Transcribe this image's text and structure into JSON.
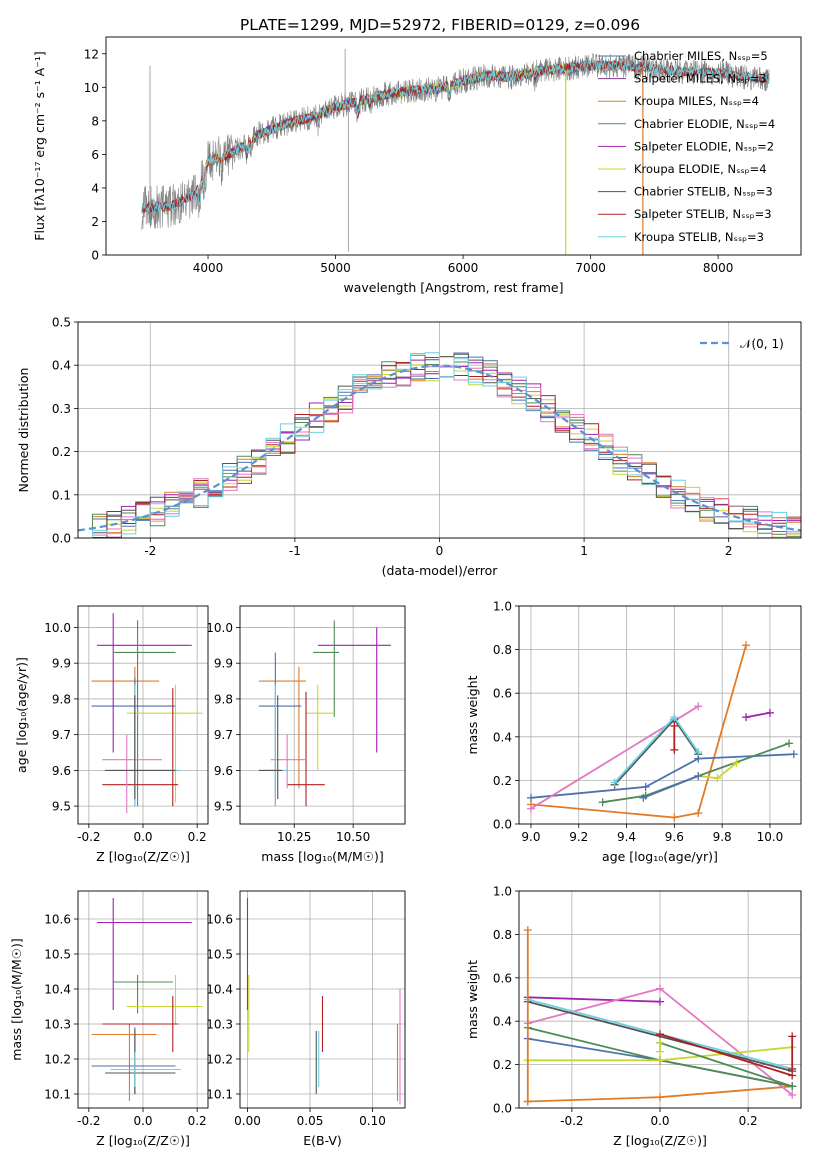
{
  "figure": {
    "title": "PLATE=1299, MJD=52972, FIBERID=0129, z=0.096"
  },
  "chart_data": [
    {
      "id": "spectrum",
      "type": "line",
      "xlabel": "wavelength [Angstrom, rest frame]",
      "ylabel": "Flux [fλ10⁻¹⁷ erg cm⁻² s⁻¹ A⁻¹]",
      "xlim": [
        3200,
        8650
      ],
      "ylim": [
        0,
        13
      ],
      "xticks": [
        4000,
        5000,
        6000,
        7000,
        8000
      ],
      "yticks": [
        0,
        2,
        4,
        6,
        8,
        10,
        12
      ],
      "grid": false,
      "legend_position": "right",
      "data_range": [
        3480,
        8400
      ],
      "continuum": [
        [
          3480,
          2.8
        ],
        [
          3700,
          2.9
        ],
        [
          3900,
          3.6
        ],
        [
          4000,
          5.6
        ],
        [
          4200,
          6.1
        ],
        [
          4400,
          7.2
        ],
        [
          4600,
          7.8
        ],
        [
          4800,
          8.2
        ],
        [
          5000,
          8.8
        ],
        [
          5200,
          9.2
        ],
        [
          5400,
          9.6
        ],
        [
          5600,
          9.8
        ],
        [
          5800,
          9.9
        ],
        [
          6000,
          10.4
        ],
        [
          6200,
          10.7
        ],
        [
          6400,
          10.6
        ],
        [
          6600,
          11.0
        ],
        [
          6800,
          11.1
        ],
        [
          7000,
          11.3
        ],
        [
          7200,
          11.3
        ],
        [
          7400,
          11.2
        ],
        [
          7600,
          11.0
        ],
        [
          7800,
          10.9
        ],
        [
          8000,
          10.9
        ],
        [
          8200,
          10.6
        ],
        [
          8400,
          10.5
        ]
      ],
      "series": [
        {
          "name": "Chabrier MILES, Nₛₛₚ=5",
          "color": "#4c72b0",
          "lo": 3540,
          "hi": 7410
        },
        {
          "name": "Salpeter MILES, Nₛₛₚ=3",
          "color": "#7f3a8a",
          "lo": 3540,
          "hi": 7410
        },
        {
          "name": "Kroupa MILES, Nₛₛₚ=4",
          "color": "#e07b28",
          "lo": 3540,
          "hi": 7410
        },
        {
          "name": "Chabrier ELODIE, Nₛₛₚ=4",
          "color": "#4e8a56",
          "lo": 3900,
          "hi": 6800
        },
        {
          "name": "Salpeter ELODIE, Nₛₛₚ=2",
          "color": "#a020b0",
          "lo": 3900,
          "hi": 6800
        },
        {
          "name": "Kroupa ELODIE, Nₛₛₚ=4",
          "color": "#c8d630",
          "lo": 3900,
          "hi": 6800
        },
        {
          "name": "Chabrier STELIB, Nₛₛₚ=3",
          "color": "#555555",
          "lo": 3480,
          "hi": 8400
        },
        {
          "name": "Salpeter STELIB, Nₛₛₚ=3",
          "color": "#b02020",
          "lo": 3480,
          "hi": 8400
        },
        {
          "name": "Kroupa STELIB, Nₛₛₚ=3",
          "color": "#6dd0e0",
          "lo": 3480,
          "hi": 8400
        }
      ],
      "observed": {
        "color": "#808080"
      }
    },
    {
      "id": "residuals",
      "type": "bar",
      "xlabel": "(data-model)/error",
      "ylabel": "Normed distribution",
      "xlim": [
        -2.5,
        2.5
      ],
      "ylim": [
        0,
        0.5
      ],
      "xticks": [
        -2,
        -1,
        0,
        1,
        2
      ],
      "yticks": [
        0.0,
        0.1,
        0.2,
        0.3,
        0.4,
        0.5
      ],
      "grid": true,
      "legend": "𝒩(0, 1)",
      "legend_position": "top-right",
      "reference_curve": "N(0,1)",
      "colors": [
        "#4c72b0",
        "#e07b28",
        "#4e8a56",
        "#a020b0",
        "#c8d630",
        "#b02020",
        "#e377c2",
        "#555555",
        "#6dd0e0"
      ]
    },
    {
      "id": "age-vs-Z",
      "type": "scatter",
      "xlabel": "Z [log₁₀(Z/Z☉)]",
      "ylabel": "age  [log₁₀(age/yr)]",
      "xlim": [
        -0.24,
        0.24
      ],
      "ylim": [
        9.45,
        10.06
      ],
      "xticks": [
        -0.2,
        0.0,
        0.2
      ],
      "yticks": [
        9.5,
        9.6,
        9.7,
        9.8,
        9.9,
        10.0
      ],
      "grid": true,
      "points": [
        {
          "color": "#e07b28",
          "x": -0.03,
          "xlo": -0.19,
          "xhi": 0.06,
          "y": 9.85,
          "ylo": 9.55,
          "yhi": 9.89
        },
        {
          "color": "#4c72b0",
          "x": -0.03,
          "xlo": -0.19,
          "xhi": 0.12,
          "y": 9.78,
          "ylo": 9.5,
          "yhi": 9.86
        },
        {
          "color": "#a020b0",
          "x": -0.11,
          "xlo": -0.17,
          "xhi": 0.18,
          "y": 9.95,
          "ylo": 9.65,
          "yhi": 10.04
        },
        {
          "color": "#4e8a56",
          "x": -0.02,
          "xlo": -0.11,
          "xhi": 0.12,
          "y": 9.93,
          "ylo": 9.5,
          "yhi": 10.02
        },
        {
          "color": "#c8d630",
          "x": 0.12,
          "xlo": -0.06,
          "xhi": 0.22,
          "y": 9.76,
          "ylo": 9.51,
          "yhi": 9.84
        },
        {
          "color": "#b02020",
          "x": 0.11,
          "xlo": -0.15,
          "xhi": 0.13,
          "y": 9.56,
          "ylo": 9.5,
          "yhi": 9.83
        },
        {
          "color": "#e377c2",
          "x": -0.06,
          "xlo": -0.15,
          "xhi": 0.07,
          "y": 9.63,
          "ylo": 9.48,
          "yhi": 9.7
        },
        {
          "color": "#6dd0e0",
          "x": -0.03,
          "xlo": -0.12,
          "xhi": 0.14,
          "y": 9.6,
          "ylo": 9.5,
          "yhi": 9.84
        },
        {
          "color": "#555555",
          "x": -0.03,
          "xlo": -0.14,
          "xhi": 0.12,
          "y": 9.6,
          "ylo": 9.52,
          "yhi": 9.81
        }
      ]
    },
    {
      "id": "age-vs-mass",
      "type": "scatter",
      "xlabel": "mass [log₁₀(M/M☉)]",
      "ylabel": "",
      "xlim": [
        10.02,
        10.72
      ],
      "ylim": [
        9.45,
        10.06
      ],
      "xticks": [
        10.25,
        10.5
      ],
      "yticks": [
        9.5,
        9.6,
        9.7,
        9.8,
        9.9,
        10.0
      ],
      "grid": true,
      "points": [
        {
          "color": "#e07b28",
          "x": 10.27,
          "xlo": 10.1,
          "xhi": 10.3,
          "y": 9.85,
          "ylo": 9.55,
          "yhi": 9.89
        },
        {
          "color": "#4c72b0",
          "x": 10.17,
          "xlo": 10.1,
          "xhi": 10.28,
          "y": 9.78,
          "ylo": 9.5,
          "yhi": 9.93
        },
        {
          "color": "#a020b0",
          "x": 10.6,
          "xlo": 10.35,
          "xhi": 10.66,
          "y": 9.95,
          "ylo": 9.65,
          "yhi": 10.0
        },
        {
          "color": "#4e8a56",
          "x": 10.42,
          "xlo": 10.33,
          "xhi": 10.44,
          "y": 9.93,
          "ylo": 9.75,
          "yhi": 10.02
        },
        {
          "color": "#c8d630",
          "x": 10.35,
          "xlo": 10.3,
          "xhi": 10.42,
          "y": 9.76,
          "ylo": 9.6,
          "yhi": 9.84
        },
        {
          "color": "#b02020",
          "x": 10.3,
          "xlo": 10.22,
          "xhi": 10.38,
          "y": 9.56,
          "ylo": 9.5,
          "yhi": 9.82
        },
        {
          "color": "#e377c2",
          "x": 10.22,
          "xlo": 10.15,
          "xhi": 10.3,
          "y": 9.63,
          "ylo": 9.55,
          "yhi": 9.7
        },
        {
          "color": "#6dd0e0",
          "x": 10.17,
          "xlo": 10.12,
          "xhi": 10.22,
          "y": 9.6,
          "ylo": 9.5,
          "yhi": 9.84
        },
        {
          "color": "#555555",
          "x": 10.18,
          "xlo": 10.1,
          "xhi": 10.2,
          "y": 9.6,
          "ylo": 9.52,
          "yhi": 9.81
        }
      ]
    },
    {
      "id": "weight-vs-age",
      "type": "line",
      "xlabel": "age  [log₁₀(age/yr)]",
      "ylabel": "mass weight",
      "xlim": [
        8.95,
        10.13
      ],
      "ylim": [
        0,
        1
      ],
      "xticks": [
        9.0,
        9.2,
        9.4,
        9.6,
        9.8,
        10.0
      ],
      "yticks": [
        0.0,
        0.2,
        0.4,
        0.6,
        0.8,
        1.0
      ],
      "grid": true,
      "series": [
        {
          "color": "#e07b28",
          "x": [
            9.0,
            9.6,
            9.7,
            9.9
          ],
          "y": [
            0.09,
            0.03,
            0.05,
            0.82
          ]
        },
        {
          "color": "#4c72b0",
          "x": [
            9.0,
            9.48,
            9.7,
            10.1
          ],
          "y": [
            0.12,
            0.17,
            0.3,
            0.32
          ]
        },
        {
          "color": "#e377c2",
          "x": [
            9.0,
            9.7
          ],
          "y": [
            0.07,
            0.54
          ]
        },
        {
          "color": "#555555",
          "x": [
            9.35,
            9.6,
            9.7
          ],
          "y": [
            0.18,
            0.48,
            0.32
          ]
        },
        {
          "color": "#6dd0e0",
          "x": [
            9.35,
            9.6,
            9.7
          ],
          "y": [
            0.19,
            0.49,
            0.33
          ]
        },
        {
          "color": "#4e8a56",
          "x": [
            9.3,
            9.48,
            9.7,
            10.08
          ],
          "y": [
            0.1,
            0.13,
            0.22,
            0.37
          ]
        },
        {
          "color": "#c8d630",
          "x": [
            9.7,
            9.78,
            9.86
          ],
          "y": [
            0.22,
            0.21,
            0.28
          ]
        },
        {
          "color": "#a020b0",
          "x": [
            9.9,
            10.0
          ],
          "y": [
            0.49,
            0.51
          ]
        },
        {
          "color": "#4c72b0",
          "x": [
            9.47,
            9.7
          ],
          "y": [
            0.12,
            0.22
          ]
        },
        {
          "color": "#b02020",
          "x": [
            9.6,
            9.6
          ],
          "y": [
            0.34,
            0.45
          ]
        }
      ]
    },
    {
      "id": "mass-vs-Z",
      "type": "scatter",
      "xlabel": "Z [log₁₀(Z/Z☉)]",
      "ylabel": "mass [log₁₀(M/M☉)]",
      "xlim": [
        -0.24,
        0.24
      ],
      "ylim": [
        10.06,
        10.68
      ],
      "xticks": [
        -0.2,
        0.0,
        0.2
      ],
      "yticks": [
        10.1,
        10.2,
        10.3,
        10.4,
        10.5,
        10.6
      ],
      "grid": true,
      "points": [
        {
          "color": "#e07b28",
          "x": -0.05,
          "xlo": -0.19,
          "xhi": 0.05,
          "y": 10.27,
          "ylo": 10.08,
          "yhi": 10.3
        },
        {
          "color": "#4c72b0",
          "x": -0.03,
          "xlo": -0.19,
          "xhi": 0.12,
          "y": 10.18,
          "ylo": 10.1,
          "yhi": 10.28
        },
        {
          "color": "#a020b0",
          "x": -0.11,
          "xlo": -0.17,
          "xhi": 0.18,
          "y": 10.59,
          "ylo": 10.34,
          "yhi": 10.66
        },
        {
          "color": "#4e8a56",
          "x": -0.02,
          "xlo": -0.11,
          "xhi": 0.11,
          "y": 10.42,
          "ylo": 10.33,
          "yhi": 10.44
        },
        {
          "color": "#c8d630",
          "x": 0.12,
          "xlo": -0.06,
          "xhi": 0.22,
          "y": 10.35,
          "ylo": 10.3,
          "yhi": 10.44
        },
        {
          "color": "#b02020",
          "x": 0.11,
          "xlo": -0.15,
          "xhi": 0.13,
          "y": 10.3,
          "ylo": 10.22,
          "yhi": 10.38
        },
        {
          "color": "#555555",
          "x": -0.03,
          "xlo": -0.14,
          "xhi": 0.12,
          "y": 10.16,
          "ylo": 10.1,
          "yhi": 10.29
        },
        {
          "color": "#6dd0e0",
          "x": -0.03,
          "xlo": -0.12,
          "xhi": 0.14,
          "y": 10.17,
          "ylo": 10.12,
          "yhi": 10.22
        }
      ]
    },
    {
      "id": "mass-vs-ebv",
      "type": "scatter",
      "xlabel": "E(B-V)",
      "ylabel": "",
      "xlim": [
        -0.006,
        0.126
      ],
      "ylim": [
        10.06,
        10.68
      ],
      "xticks": [
        0.0,
        0.05,
        0.1
      ],
      "yticks": [
        10.1,
        10.2,
        10.3,
        10.4,
        10.5,
        10.6
      ],
      "grid": true,
      "points": [
        {
          "color": "#a020b0",
          "x": 0.0,
          "ylo": 10.34,
          "yhi": 10.66
        },
        {
          "color": "#c8d630",
          "x": 0.001,
          "ylo": 10.22,
          "yhi": 10.44
        },
        {
          "color": "#555555",
          "x": 0.055,
          "ylo": 10.1,
          "yhi": 10.28
        },
        {
          "color": "#6dd0e0",
          "x": 0.057,
          "ylo": 10.12,
          "yhi": 10.28
        },
        {
          "color": "#b02020",
          "x": 0.06,
          "ylo": 10.22,
          "yhi": 10.38
        },
        {
          "color": "#e07b28",
          "x": 0.12,
          "ylo": 10.08,
          "yhi": 10.3
        },
        {
          "color": "#e377c2",
          "x": 0.122,
          "ylo": 10.07,
          "yhi": 10.4
        }
      ]
    },
    {
      "id": "weight-vs-Z",
      "type": "line",
      "xlabel": "Z [log₁₀(Z/Z☉)]",
      "ylabel": "mass weight",
      "xlim": [
        -0.32,
        0.32
      ],
      "ylim": [
        0,
        1
      ],
      "xticks": [
        -0.2,
        0.0,
        0.2
      ],
      "yticks": [
        0.0,
        0.2,
        0.4,
        0.6,
        0.8,
        1.0
      ],
      "grid": true,
      "series": [
        {
          "color": "#e07b28",
          "x": [
            -0.3,
            0.0,
            0.3
          ],
          "y": [
            0.03,
            0.05,
            0.1
          ]
        },
        {
          "color": "#4c72b0",
          "x": [
            -0.3,
            0.0,
            0.3
          ],
          "y": [
            0.32,
            0.22,
            0.1
          ]
        },
        {
          "color": "#a020b0",
          "x": [
            -0.3,
            0.0
          ],
          "y": [
            0.51,
            0.49
          ]
        },
        {
          "color": "#e377c2",
          "x": [
            -0.3,
            0.0,
            0.3
          ],
          "y": [
            0.39,
            0.55,
            0.06
          ]
        },
        {
          "color": "#4e8a56",
          "x": [
            -0.3,
            0.0,
            0.3
          ],
          "y": [
            0.37,
            0.22,
            0.1
          ]
        },
        {
          "color": "#c8d630",
          "x": [
            -0.3,
            0.0,
            0.3
          ],
          "y": [
            0.22,
            0.22,
            0.28
          ]
        },
        {
          "color": "#555555",
          "x": [
            -0.3,
            0.3
          ],
          "y": [
            0.49,
            0.17
          ]
        },
        {
          "color": "#6dd0e0",
          "x": [
            -0.3,
            0.3
          ],
          "y": [
            0.5,
            0.18
          ]
        },
        {
          "color": "#b02020",
          "x": [
            0.0,
            0.3
          ],
          "y": [
            0.34,
            0.15
          ]
        },
        {
          "color": "#4e8a56",
          "x": [
            0.0,
            0.3
          ],
          "y": [
            0.3,
            0.1
          ]
        },
        {
          "color": "#c8d630",
          "x": [
            0.0,
            0.0
          ],
          "y": [
            0.26,
            0.3
          ]
        },
        {
          "color": "#e07b28",
          "x": [
            -0.3,
            -0.3
          ],
          "y": [
            0.03,
            0.82
          ]
        },
        {
          "color": "#b02020",
          "x": [
            0.3,
            0.3
          ],
          "y": [
            0.18,
            0.33
          ]
        }
      ]
    }
  ]
}
